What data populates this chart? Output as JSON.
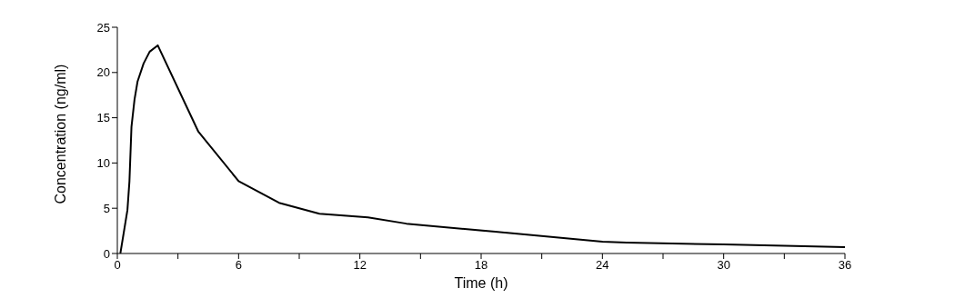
{
  "chart_data": {
    "type": "line",
    "xlabel": "Time (h)",
    "ylabel": "Concentration (ng/ml)",
    "x": [
      0.15,
      0.5,
      0.6,
      0.7,
      0.85,
      1.0,
      1.3,
      1.6,
      2,
      4,
      6,
      8,
      10,
      12.4,
      14.3,
      18.7,
      24,
      25.2,
      30,
      36
    ],
    "series": [
      {
        "color": "#000000",
        "values": [
          0,
          4.8,
          8,
          14,
          17,
          19,
          21,
          22.3,
          23,
          13.5,
          8,
          5.6,
          4.4,
          4.0,
          3.3,
          2.4,
          1.3,
          1.2,
          1.0,
          0.7
        ]
      }
    ],
    "xlim": [
      0,
      36
    ],
    "xticks": [
      0,
      {
        "value": 3,
        "label": null
      },
      6,
      {
        "value": 9,
        "label": null
      },
      12,
      {
        "value": 15,
        "label": null
      },
      18,
      {
        "value": 21,
        "label": null
      },
      24,
      {
        "value": 27,
        "label": null
      },
      30,
      {
        "value": 33,
        "label": null
      },
      36
    ],
    "ylim": [
      0,
      25
    ],
    "yticks": [
      0,
      5,
      10,
      15,
      20,
      25
    ],
    "grid": false,
    "legend": false,
    "marker": "none",
    "line_style": "solid"
  }
}
